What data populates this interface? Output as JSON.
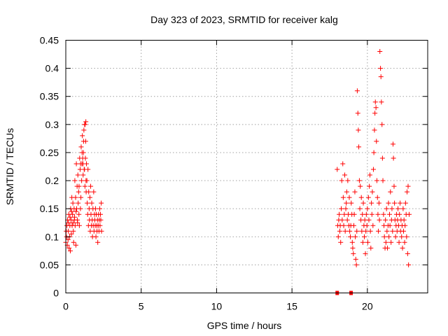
{
  "chart_data": {
    "type": "scatter",
    "title": "Day 323 of 2023, SRMTID for receiver kalg",
    "xlabel": "GPS time / hours",
    "ylabel": "SRMTID / TECUs",
    "xlim": [
      0,
      24
    ],
    "ylim": [
      0,
      0.45
    ],
    "xticks": [
      0,
      5,
      10,
      15,
      20
    ],
    "xtick_labels": [
      "0",
      "5",
      "10",
      "15",
      "20"
    ],
    "yticks": [
      0,
      0.05,
      0.1,
      0.15,
      0.2,
      0.25,
      0.3,
      0.35,
      0.4,
      0.45
    ],
    "ytick_labels": [
      "0",
      "0.05",
      "0.1",
      "0.15",
      "0.2",
      "0.25",
      "0.3",
      "0.35",
      "0.4",
      "0.45"
    ],
    "grid": true,
    "marker": "plus",
    "color": "#ff0000",
    "series": [
      {
        "name": "SRMTID",
        "points": [
          [
            0.0,
            0.09
          ],
          [
            0.03,
            0.11
          ],
          [
            0.05,
            0.1
          ],
          [
            0.07,
            0.12
          ],
          [
            0.1,
            0.085
          ],
          [
            0.12,
            0.13
          ],
          [
            0.15,
            0.095
          ],
          [
            0.17,
            0.11
          ],
          [
            0.2,
            0.14
          ],
          [
            0.22,
            0.08
          ],
          [
            0.25,
            0.1
          ],
          [
            0.27,
            0.12
          ],
          [
            0.3,
            0.075
          ],
          [
            0.32,
            0.15
          ],
          [
            0.35,
            0.13
          ],
          [
            0.37,
            0.105
          ],
          [
            0.4,
            0.17
          ],
          [
            0.42,
            0.12
          ],
          [
            0.45,
            0.14
          ],
          [
            0.47,
            0.16
          ],
          [
            0.5,
            0.11
          ],
          [
            0.52,
            0.09
          ],
          [
            0.55,
            0.15
          ],
          [
            0.57,
            0.13
          ],
          [
            0.6,
            0.2
          ],
          [
            0.62,
            0.12
          ],
          [
            0.65,
            0.17
          ],
          [
            0.67,
            0.085
          ],
          [
            0.7,
            0.23
          ],
          [
            0.72,
            0.15
          ],
          [
            0.75,
            0.19
          ],
          [
            0.77,
            0.13
          ],
          [
            0.8,
            0.21
          ],
          [
            0.82,
            0.16
          ],
          [
            0.85,
            0.18
          ],
          [
            0.87,
            0.14
          ],
          [
            0.9,
            0.12
          ],
          [
            0.92,
            0.24
          ],
          [
            0.95,
            0.22
          ],
          [
            0.97,
            0.15
          ],
          [
            1.0,
            0.17
          ],
          [
            1.02,
            0.26
          ],
          [
            1.05,
            0.2
          ],
          [
            1.07,
            0.23
          ],
          [
            1.1,
            0.28
          ],
          [
            1.12,
            0.24
          ],
          [
            1.15,
            0.21
          ],
          [
            1.17,
            0.25
          ],
          [
            1.2,
            0.29
          ],
          [
            1.22,
            0.22
          ],
          [
            1.25,
            0.3
          ],
          [
            1.27,
            0.19
          ],
          [
            1.3,
            0.24
          ],
          [
            1.32,
            0.27
          ],
          [
            1.35,
            0.18
          ],
          [
            1.37,
            0.23
          ],
          [
            1.4,
            0.2
          ],
          [
            1.42,
            0.16
          ],
          [
            1.45,
            0.14
          ],
          [
            1.47,
            0.22
          ],
          [
            1.5,
            0.12
          ],
          [
            1.52,
            0.18
          ],
          [
            1.55,
            0.15
          ],
          [
            1.57,
            0.13
          ],
          [
            1.6,
            0.17
          ],
          [
            1.62,
            0.11
          ],
          [
            1.65,
            0.19
          ],
          [
            1.67,
            0.14
          ],
          [
            1.7,
            0.12
          ],
          [
            1.72,
            0.16
          ],
          [
            1.75,
            0.13
          ],
          [
            1.77,
            0.1
          ],
          [
            1.8,
            0.15
          ],
          [
            1.82,
            0.12
          ],
          [
            1.85,
            0.18
          ],
          [
            1.87,
            0.11
          ],
          [
            1.9,
            0.14
          ],
          [
            1.92,
            0.13
          ],
          [
            1.95,
            0.12
          ],
          [
            1.97,
            0.15
          ],
          [
            2.0,
            0.1
          ],
          [
            2.02,
            0.14
          ],
          [
            2.05,
            0.12
          ],
          [
            2.07,
            0.11
          ],
          [
            2.1,
            0.13
          ],
          [
            2.12,
            0.09
          ],
          [
            2.15,
            0.12
          ],
          [
            2.17,
            0.14
          ],
          [
            2.2,
            0.11
          ],
          [
            2.22,
            0.13
          ],
          [
            2.25,
            0.15
          ],
          [
            2.27,
            0.12
          ],
          [
            2.3,
            0.14
          ],
          [
            2.32,
            0.13
          ],
          [
            2.35,
            0.16
          ],
          [
            2.37,
            0.11
          ],
          [
            0.98,
            0.23
          ],
          [
            1.08,
            0.25
          ],
          [
            1.18,
            0.27
          ],
          [
            1.28,
            0.3
          ],
          [
            1.33,
            0.305
          ],
          [
            1.14,
            0.23
          ],
          [
            1.24,
            0.22
          ],
          [
            1.34,
            0.2
          ],
          [
            0.18,
            0.125
          ],
          [
            0.28,
            0.135
          ],
          [
            0.38,
            0.145
          ],
          [
            0.48,
            0.125
          ],
          [
            0.58,
            0.135
          ],
          [
            0.68,
            0.145
          ],
          [
            0.78,
            0.125
          ],
          [
            0.88,
            0.19
          ],
          [
            18.0,
            0.0
          ],
          [
            18.92,
            0.0
          ],
          [
            18.0,
            0.22
          ],
          [
            18.03,
            0.12
          ],
          [
            18.07,
            0.1
          ],
          [
            18.1,
            0.13
          ],
          [
            18.13,
            0.14
          ],
          [
            18.17,
            0.11
          ],
          [
            18.2,
            0.12
          ],
          [
            18.23,
            0.09
          ],
          [
            18.27,
            0.15
          ],
          [
            18.3,
            0.2
          ],
          [
            18.33,
            0.13
          ],
          [
            18.37,
            0.23
          ],
          [
            18.4,
            0.17
          ],
          [
            18.43,
            0.12
          ],
          [
            18.47,
            0.14
          ],
          [
            18.5,
            0.21
          ],
          [
            18.53,
            0.11
          ],
          [
            18.57,
            0.15
          ],
          [
            18.6,
            0.16
          ],
          [
            18.63,
            0.18
          ],
          [
            18.67,
            0.13
          ],
          [
            18.7,
            0.2
          ],
          [
            18.73,
            0.14
          ],
          [
            18.77,
            0.12
          ],
          [
            18.8,
            0.17
          ],
          [
            18.83,
            0.11
          ],
          [
            18.87,
            0.1
          ],
          [
            18.9,
            0.12
          ],
          [
            18.93,
            0.16
          ],
          [
            18.97,
            0.14
          ],
          [
            19.0,
            0.09
          ],
          [
            19.03,
            0.08
          ],
          [
            19.07,
            0.07
          ],
          [
            19.1,
            0.12
          ],
          [
            19.13,
            0.14
          ],
          [
            19.17,
            0.18
          ],
          [
            19.2,
            0.1
          ],
          [
            19.23,
            0.06
          ],
          [
            19.27,
            0.05
          ],
          [
            19.3,
            0.11
          ],
          [
            19.33,
            0.36
          ],
          [
            19.37,
            0.32
          ],
          [
            19.4,
            0.29
          ],
          [
            19.43,
            0.26
          ],
          [
            19.47,
            0.2
          ],
          [
            19.5,
            0.15
          ],
          [
            19.53,
            0.19
          ],
          [
            19.57,
            0.13
          ],
          [
            19.6,
            0.17
          ],
          [
            19.63,
            0.11
          ],
          [
            19.67,
            0.14
          ],
          [
            19.7,
            0.09
          ],
          [
            19.73,
            0.16
          ],
          [
            19.77,
            0.12
          ],
          [
            19.8,
            0.1
          ],
          [
            19.83,
            0.13
          ],
          [
            19.87,
            0.07
          ],
          [
            19.9,
            0.11
          ],
          [
            19.93,
            0.14
          ],
          [
            19.97,
            0.12
          ],
          [
            20.0,
            0.15
          ],
          [
            20.03,
            0.09
          ],
          [
            20.07,
            0.17
          ],
          [
            20.1,
            0.13
          ],
          [
            20.13,
            0.19
          ],
          [
            20.17,
            0.21
          ],
          [
            20.2,
            0.11
          ],
          [
            20.23,
            0.08
          ],
          [
            20.27,
            0.16
          ],
          [
            20.3,
            0.14
          ],
          [
            20.33,
            0.18
          ],
          [
            20.37,
            0.12
          ],
          [
            20.4,
            0.22
          ],
          [
            20.43,
            0.25
          ],
          [
            20.47,
            0.29
          ],
          [
            20.5,
            0.32
          ],
          [
            20.53,
            0.34
          ],
          [
            20.57,
            0.33
          ],
          [
            20.6,
            0.27
          ],
          [
            20.63,
            0.2
          ],
          [
            20.67,
            0.17
          ],
          [
            20.7,
            0.14
          ],
          [
            20.73,
            0.11
          ],
          [
            20.77,
            0.16
          ],
          [
            20.8,
            0.13
          ],
          [
            20.83,
            0.43
          ],
          [
            20.87,
            0.4
          ],
          [
            20.9,
            0.385
          ],
          [
            20.93,
            0.34
          ],
          [
            20.97,
            0.3
          ],
          [
            21.0,
            0.24
          ],
          [
            21.03,
            0.2
          ],
          [
            21.07,
            0.14
          ],
          [
            21.1,
            0.12
          ],
          [
            21.13,
            0.1
          ],
          [
            21.17,
            0.08
          ],
          [
            21.2,
            0.13
          ],
          [
            21.23,
            0.09
          ],
          [
            21.27,
            0.15
          ],
          [
            21.3,
            0.11
          ],
          [
            21.33,
            0.08
          ],
          [
            21.37,
            0.12
          ],
          [
            21.4,
            0.16
          ],
          [
            21.43,
            0.1
          ],
          [
            21.47,
            0.14
          ],
          [
            21.5,
            0.12
          ],
          [
            21.53,
            0.18
          ],
          [
            21.57,
            0.09
          ],
          [
            21.6,
            0.13
          ],
          [
            21.63,
            0.15
          ],
          [
            21.67,
            0.11
          ],
          [
            21.7,
            0.265
          ],
          [
            21.73,
            0.24
          ],
          [
            21.77,
            0.19
          ],
          [
            21.8,
            0.16
          ],
          [
            21.83,
            0.13
          ],
          [
            21.87,
            0.1
          ],
          [
            21.9,
            0.12
          ],
          [
            21.93,
            0.14
          ],
          [
            21.97,
            0.11
          ],
          [
            22.0,
            0.13
          ],
          [
            22.03,
            0.15
          ],
          [
            22.07,
            0.12
          ],
          [
            22.1,
            0.09
          ],
          [
            22.13,
            0.14
          ],
          [
            22.17,
            0.16
          ],
          [
            22.2,
            0.11
          ],
          [
            22.23,
            0.13
          ],
          [
            22.27,
            0.1
          ],
          [
            22.3,
            0.12
          ],
          [
            22.33,
            0.08
          ],
          [
            22.37,
            0.15
          ],
          [
            22.4,
            0.11
          ],
          [
            22.43,
            0.13
          ],
          [
            22.47,
            0.09
          ],
          [
            22.5,
            0.12
          ],
          [
            22.53,
            0.16
          ],
          [
            22.57,
            0.14
          ],
          [
            22.6,
            0.1
          ],
          [
            22.63,
            0.18
          ],
          [
            22.67,
            0.07
          ],
          [
            22.7,
            0.19
          ],
          [
            22.73,
            0.05
          ],
          [
            22.77,
            0.14
          ]
        ]
      }
    ]
  }
}
